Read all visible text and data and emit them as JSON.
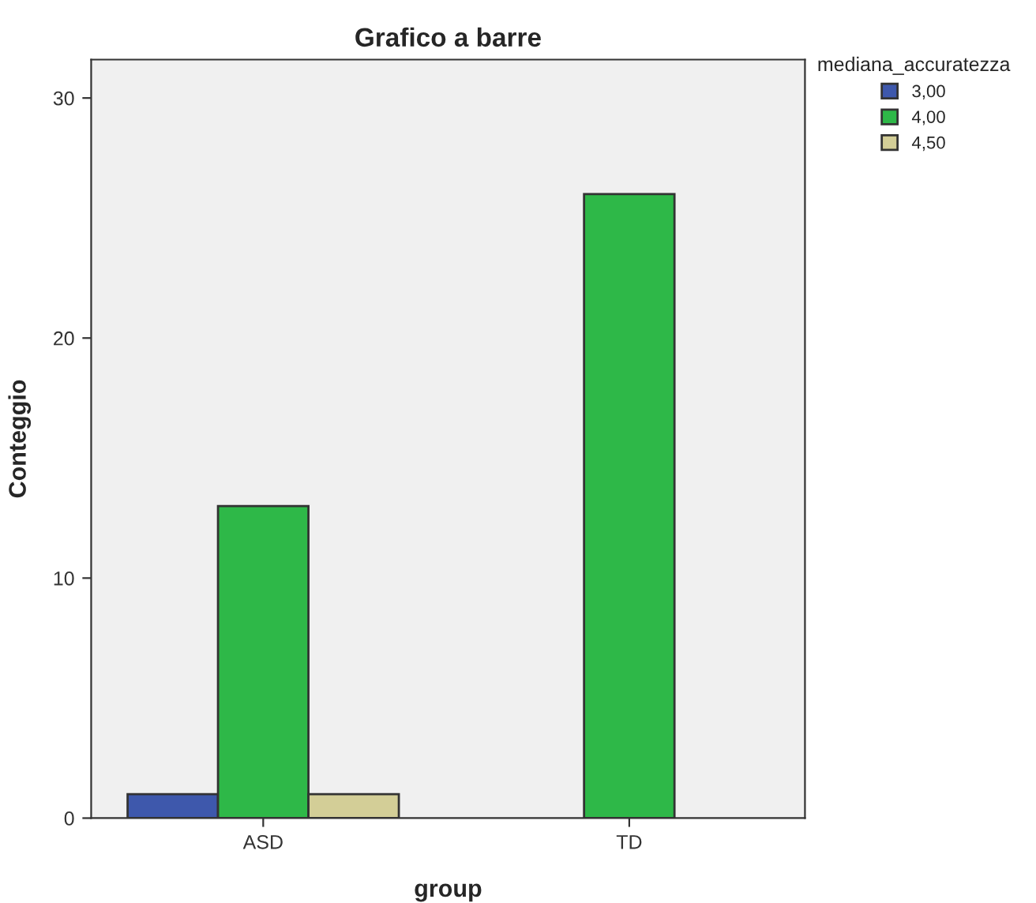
{
  "chart_data": {
    "type": "bar",
    "title": "Grafico a barre",
    "xlabel": "group",
    "ylabel": "Conteggio",
    "legend_title": "mediana_accuratezza",
    "categories": [
      "ASD",
      "TD"
    ],
    "series": [
      {
        "name": "3,00",
        "color": "#3e58ac",
        "values": [
          1,
          null
        ]
      },
      {
        "name": "4,00",
        "color": "#2eb848",
        "values": [
          13,
          26
        ]
      },
      {
        "name": "4,50",
        "color": "#d3ce97",
        "values": [
          1,
          null
        ]
      }
    ],
    "ylim": [
      0,
      31.6
    ],
    "yticks": [
      0,
      10,
      20,
      30
    ],
    "grid": false,
    "legend": "top right"
  }
}
